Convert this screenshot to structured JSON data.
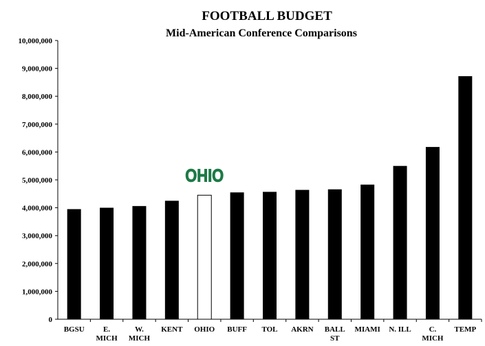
{
  "chart_data": {
    "type": "bar",
    "title": "FOOTBALL BUDGET",
    "subtitle": "Mid-American Conference Comparisons",
    "xlabel": "",
    "ylabel": "",
    "ylim": [
      0,
      10000000
    ],
    "y_ticks": [
      "0",
      "1,000,000",
      "2,000,000",
      "3,000,000",
      "4,000,000",
      "5,000,000",
      "6,000,000",
      "7,000,000",
      "8,000,000",
      "9,000,000",
      "10,000,000"
    ],
    "grid": false,
    "categories": [
      [
        "BGSU"
      ],
      [
        "E.",
        "MICH"
      ],
      [
        "W.",
        "MICH"
      ],
      [
        "KENT"
      ],
      [
        "OHIO"
      ],
      [
        "BUFF"
      ],
      [
        "TOL"
      ],
      [
        "AKRN"
      ],
      [
        "BALL",
        "ST"
      ],
      [
        "MIAMI"
      ],
      [
        "N. ILL"
      ],
      [
        "C.",
        "MICH"
      ],
      [
        "TEMP"
      ]
    ],
    "values": [
      3950000,
      4000000,
      4060000,
      4250000,
      4450000,
      4550000,
      4570000,
      4640000,
      4660000,
      4830000,
      5500000,
      6180000,
      8720000
    ],
    "highlight_index": 4,
    "bar_color": "#000000",
    "highlight_color": "#ffffff",
    "logo_text": "OHIO",
    "logo_color": "#1d7a46"
  }
}
